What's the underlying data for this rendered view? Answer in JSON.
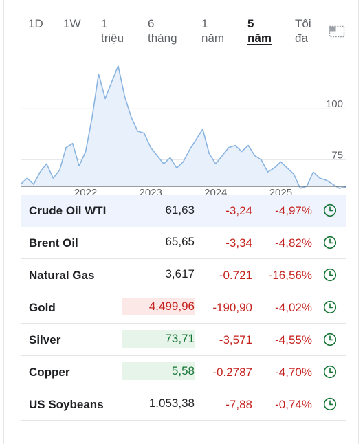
{
  "tabs": [
    {
      "label": "1D"
    },
    {
      "label": "1W"
    },
    {
      "label": "1\ntriệu"
    },
    {
      "label": "6\ntháng"
    },
    {
      "label": "1\nnăm"
    },
    {
      "label": "5\nnăm",
      "active": true
    },
    {
      "label": "Tối\nđa"
    }
  ],
  "chart_data": {
    "type": "area",
    "title": "",
    "y_ticks": [
      "100",
      "75"
    ],
    "x_ticks": [
      "2022",
      "2023",
      "2024",
      "2025"
    ],
    "ylim": [
      62,
      125
    ],
    "color": "#8ab4e0",
    "fill": "#e8f0fb",
    "x": [
      2021.0,
      2021.1,
      2021.2,
      2021.3,
      2021.4,
      2021.5,
      2021.6,
      2021.7,
      2021.8,
      2021.9,
      2022.0,
      2022.1,
      2022.2,
      2022.3,
      2022.4,
      2022.5,
      2022.6,
      2022.7,
      2022.8,
      2022.9,
      2023.0,
      2023.1,
      2023.2,
      2023.3,
      2023.4,
      2023.5,
      2023.6,
      2023.7,
      2023.8,
      2023.9,
      2024.0,
      2024.1,
      2024.2,
      2024.3,
      2024.4,
      2024.5,
      2024.6,
      2024.7,
      2024.8,
      2024.9,
      2025.0,
      2025.1,
      2025.2,
      2025.3,
      2025.4,
      2025.5,
      2025.6,
      2025.7,
      2025.8,
      2025.9,
      2026.0
    ],
    "values": [
      63,
      66,
      63,
      69,
      73,
      66,
      70,
      81,
      83,
      72,
      79,
      96,
      117,
      105,
      113,
      121,
      106,
      96,
      89,
      88,
      81,
      77,
      73,
      76,
      71,
      74,
      80,
      85,
      90,
      78,
      73,
      77,
      81,
      82,
      79,
      82,
      77,
      75,
      69,
      71,
      74,
      71,
      68,
      61,
      62,
      69,
      66,
      65,
      63,
      61,
      61.6
    ],
    "time_start": "2021",
    "time_end": "2026"
  },
  "rows": [
    {
      "name": "Crude Oil WTI",
      "price": "61,63",
      "change": "-3,24",
      "pct": "-4,97%",
      "price_bg": "none",
      "selected": true
    },
    {
      "name": "Brent Oil",
      "price": "65,65",
      "change": "-3,34",
      "pct": "-4,82%",
      "price_bg": "none"
    },
    {
      "name": "Natural Gas",
      "price": "3,617",
      "change": "-0.721",
      "pct": "-16,56%",
      "price_bg": "none"
    },
    {
      "name": "Gold",
      "price": "4.499,96",
      "change": "-190,90",
      "pct": "-4,02%",
      "price_bg": "down"
    },
    {
      "name": "Silver",
      "price": "73,71",
      "change": "-3,571",
      "pct": "-4,55%",
      "price_bg": "up"
    },
    {
      "name": "Copper",
      "price": "5,58",
      "change": "-0.2787",
      "pct": "-4,70%",
      "price_bg": "up"
    },
    {
      "name": "US Soybeans",
      "price": "1.053,38",
      "change": "-7,88",
      "pct": "-0,74%",
      "price_bg": "none"
    }
  ],
  "icons": {
    "expand": "expand-icon",
    "clock": "clock-icon"
  },
  "colors": {
    "down": "#c5221f",
    "up": "#137333",
    "clock": "#137333"
  }
}
